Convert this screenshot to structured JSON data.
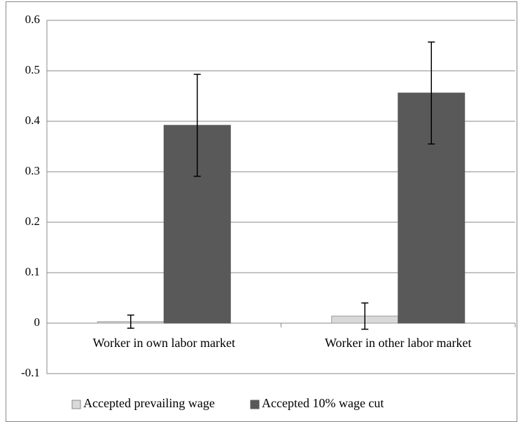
{
  "chart_data": {
    "type": "bar",
    "categories": [
      "Worker in own labor market",
      "Worker in other labor market"
    ],
    "series": [
      {
        "name": "Accepted prevailing wage",
        "color": "#d9d9d9",
        "values": [
          0.003,
          0.014
        ],
        "errors": [
          0.013,
          0.026
        ]
      },
      {
        "name": "Accepted 10% wage cut",
        "color": "#595959",
        "values": [
          0.392,
          0.456
        ],
        "errors": [
          0.101,
          0.101
        ]
      }
    ],
    "ylim": [
      -0.1,
      0.6
    ],
    "yticks": [
      -0.1,
      0,
      0.1,
      0.2,
      0.3,
      0.4,
      0.5,
      0.6
    ],
    "grid": true,
    "legend": "bottom"
  }
}
